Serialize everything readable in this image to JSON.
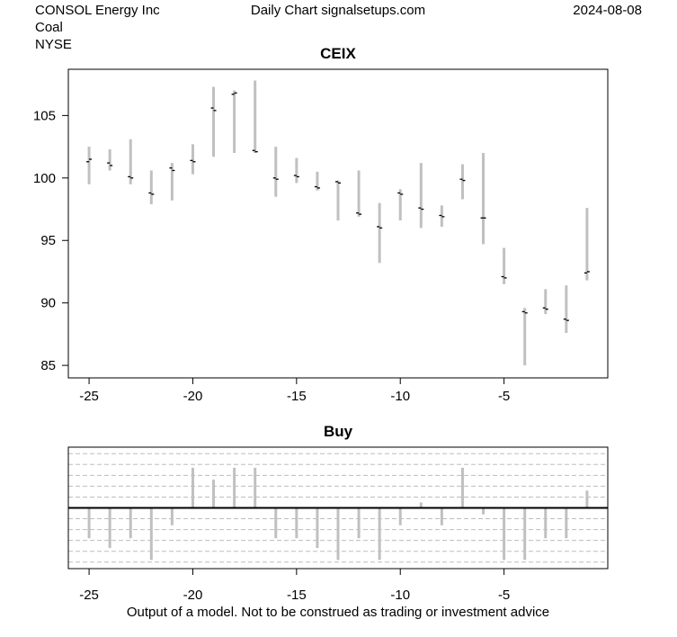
{
  "header": {
    "company": "CONSOL Energy Inc",
    "industry": "Coal",
    "exchange": "NYSE",
    "source": "Daily Chart signalsetups.com",
    "date": "2024-08-08"
  },
  "footer": {
    "disclaimer": "Output of a model. Not to be construed as trading or investment advice"
  },
  "chart_data": [
    {
      "type": "ohlc",
      "title": "CEIX",
      "xlabel": "",
      "ylabel": "",
      "xlim": [
        -26,
        0
      ],
      "ylim": [
        84,
        108.7
      ],
      "x_ticks": [
        -25,
        -20,
        -15,
        -10,
        -5
      ],
      "y_ticks": [
        85,
        90,
        95,
        100,
        105
      ],
      "bar_color": "#c0c0c0",
      "tick_color": "#000000",
      "bars": [
        {
          "x": -25,
          "low": 99.5,
          "high": 102.5,
          "open": 101.3,
          "close": 101.5
        },
        {
          "x": -24,
          "low": 100.6,
          "high": 102.3,
          "open": 101.2,
          "close": 101.0
        },
        {
          "x": -23,
          "low": 99.5,
          "high": 103.1,
          "open": 100.1,
          "close": 100.0
        },
        {
          "x": -22,
          "low": 97.9,
          "high": 100.6,
          "open": 98.8,
          "close": 98.7
        },
        {
          "x": -21,
          "low": 98.2,
          "high": 101.2,
          "open": 100.8,
          "close": 100.6
        },
        {
          "x": -20,
          "low": 100.3,
          "high": 102.7,
          "open": 101.4,
          "close": 101.3
        },
        {
          "x": -19,
          "low": 101.7,
          "high": 107.3,
          "open": 105.6,
          "close": 105.4
        },
        {
          "x": -18,
          "low": 102.0,
          "high": 107.0,
          "open": 106.7,
          "close": 106.8
        },
        {
          "x": -17,
          "low": 102.0,
          "high": 107.8,
          "open": 102.2,
          "close": 102.1
        },
        {
          "x": -16,
          "low": 98.5,
          "high": 102.5,
          "open": 100.0,
          "close": 99.9
        },
        {
          "x": -15,
          "low": 99.6,
          "high": 101.6,
          "open": 100.2,
          "close": 100.1
        },
        {
          "x": -14,
          "low": 99.0,
          "high": 100.5,
          "open": 99.3,
          "close": 99.2
        },
        {
          "x": -13,
          "low": 96.6,
          "high": 99.8,
          "open": 99.7,
          "close": 99.6
        },
        {
          "x": -12,
          "low": 96.9,
          "high": 100.6,
          "open": 97.2,
          "close": 97.1
        },
        {
          "x": -11,
          "low": 93.2,
          "high": 98.0,
          "open": 96.1,
          "close": 96.0
        },
        {
          "x": -10,
          "low": 96.6,
          "high": 99.1,
          "open": 98.8,
          "close": 98.7
        },
        {
          "x": -9,
          "low": 96.0,
          "high": 101.2,
          "open": 97.6,
          "close": 97.5
        },
        {
          "x": -8,
          "low": 96.1,
          "high": 97.8,
          "open": 97.0,
          "close": 96.9
        },
        {
          "x": -7,
          "low": 98.3,
          "high": 101.1,
          "open": 99.9,
          "close": 99.8
        },
        {
          "x": -6,
          "low": 94.7,
          "high": 102.0,
          "open": 96.8,
          "close": 96.8
        },
        {
          "x": -5,
          "low": 91.5,
          "high": 94.4,
          "open": 92.1,
          "close": 92.0
        },
        {
          "x": -4,
          "low": 85.0,
          "high": 89.6,
          "open": 89.3,
          "close": 89.2
        },
        {
          "x": -3,
          "low": 89.1,
          "high": 91.1,
          "open": 89.6,
          "close": 89.5
        },
        {
          "x": -2,
          "low": 87.6,
          "high": 91.4,
          "open": 88.7,
          "close": 88.6
        },
        {
          "x": -1,
          "low": 91.8,
          "high": 97.6,
          "open": 92.4,
          "close": 92.5
        }
      ]
    },
    {
      "type": "bar",
      "title": "Buy",
      "xlabel": "",
      "ylabel": "",
      "xlim": [
        -26,
        0
      ],
      "ylim": [
        -5.6,
        5.6
      ],
      "x_ticks": [
        -25,
        -20,
        -15,
        -10,
        -5
      ],
      "grid_lines": [
        -5,
        -4,
        -3,
        -2,
        -1,
        1,
        2,
        3,
        4,
        5
      ],
      "bar_color": "#c0c0c0",
      "zero_line_color": "#000000",
      "x": [
        -25,
        -24,
        -23,
        -22,
        -21,
        -20,
        -19,
        -18,
        -17,
        -16,
        -15,
        -14,
        -13,
        -12,
        -11,
        -10,
        -9,
        -8,
        -7,
        -6,
        -5,
        -4,
        -3,
        -2,
        -1
      ],
      "values": [
        -2.8,
        -3.7,
        -2.8,
        -4.8,
        -1.6,
        3.7,
        2.6,
        3.7,
        3.7,
        -2.8,
        -2.8,
        -3.7,
        -4.8,
        -2.8,
        -4.8,
        -1.6,
        0.5,
        -1.6,
        3.7,
        -0.6,
        -4.8,
        -4.8,
        -2.8,
        -2.8,
        1.6
      ]
    }
  ]
}
